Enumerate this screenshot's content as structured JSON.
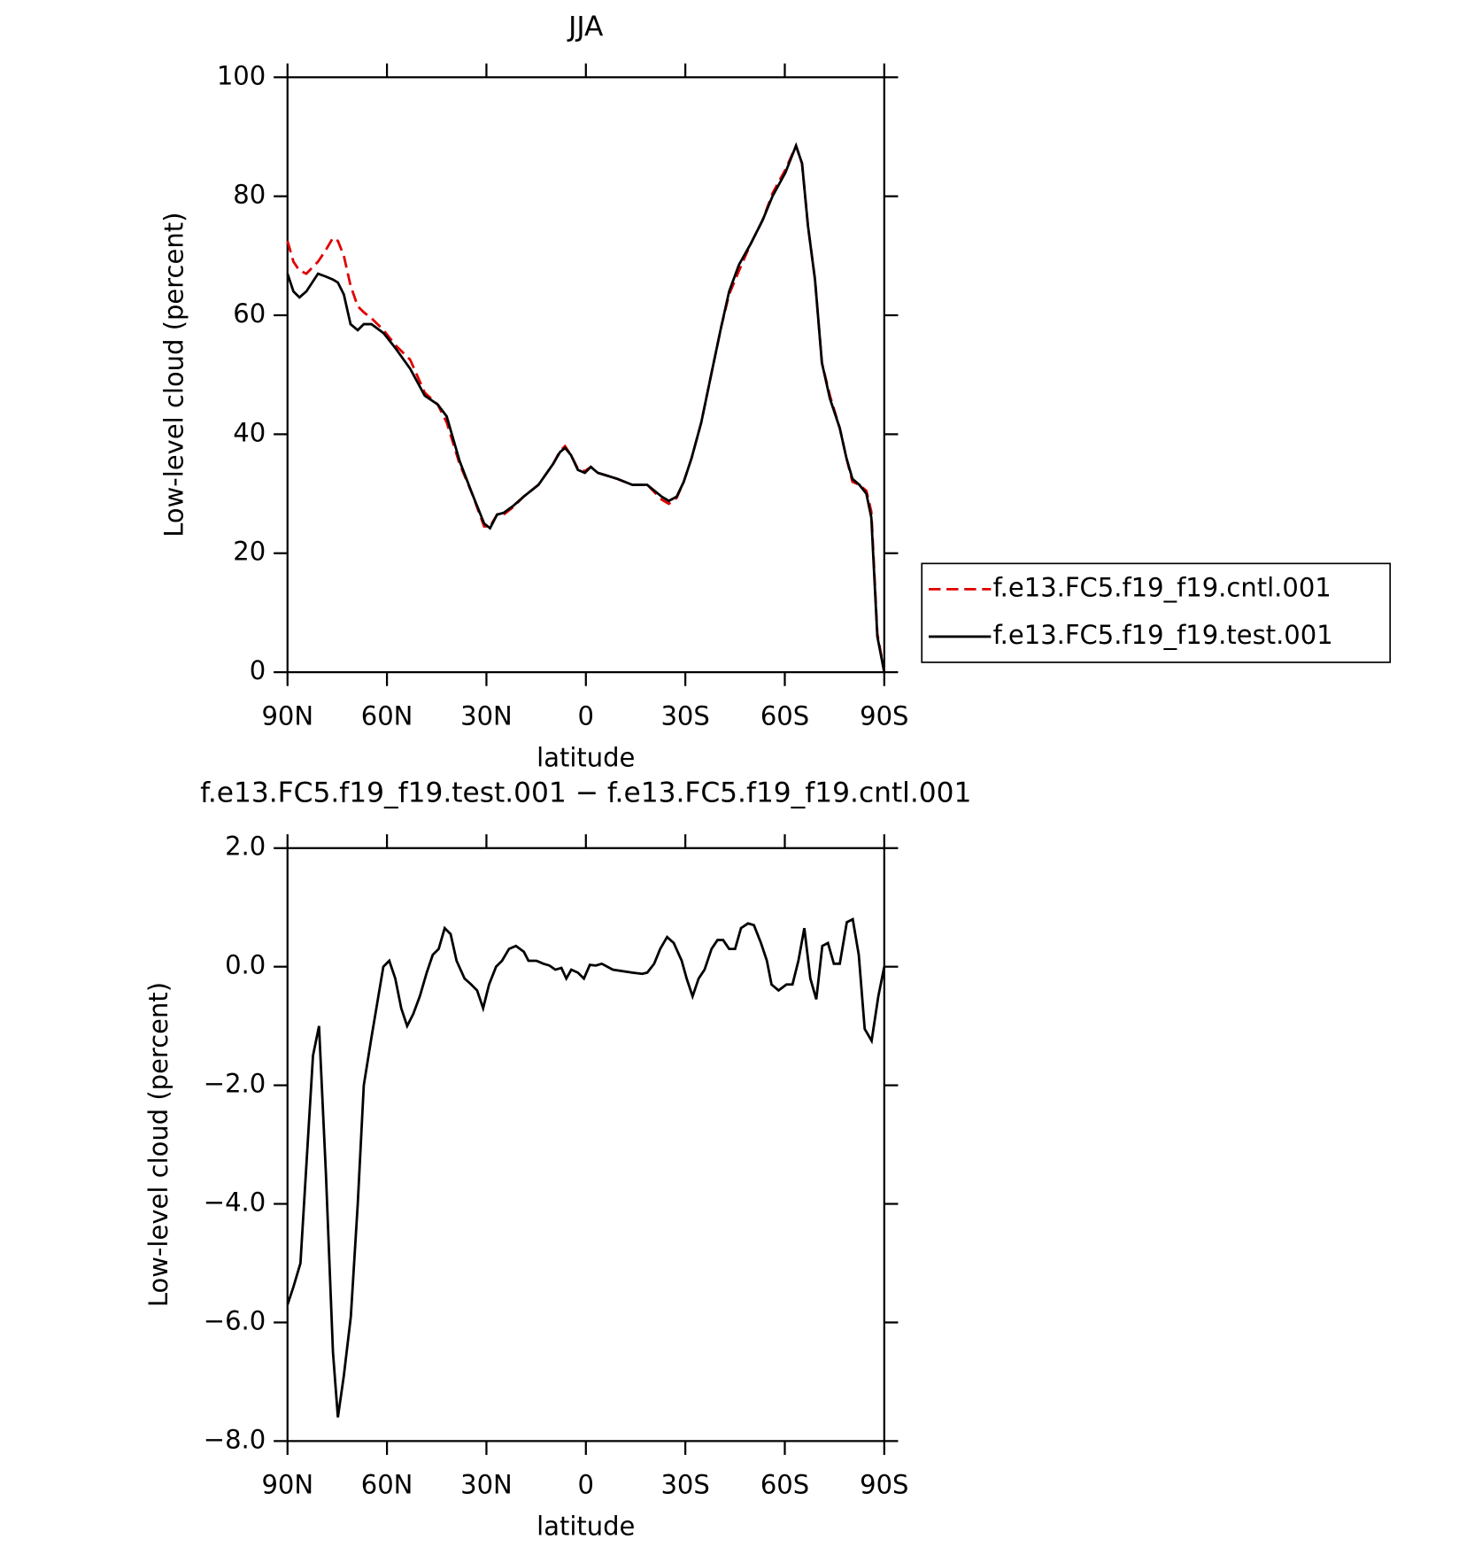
{
  "chart_data": [
    {
      "type": "line",
      "title": "JJA",
      "xlabel": "latitude",
      "ylabel": "Low-level cloud (percent)",
      "x": [
        90,
        88.2,
        86.4,
        84.3,
        80.8,
        78.4,
        76.3,
        74.8,
        73,
        71,
        68.8,
        67,
        64.7,
        61,
        57.5,
        53,
        48.6,
        44.7,
        42,
        38.1,
        34.3,
        30.7,
        28.9,
        26.8,
        24.8,
        21.8,
        18.8,
        14.3,
        9.9,
        7.8,
        6.3,
        4.5,
        2.4,
        0.3,
        -1.5,
        -3.6,
        -6.6,
        -9.5,
        -14,
        -18.5,
        -22.9,
        -25,
        -27.4,
        -29.5,
        -31.9,
        -34.8,
        -37.8,
        -40.8,
        -43.2,
        -46.2,
        -49.7,
        -53.3,
        -56.3,
        -60.2,
        -63.4,
        -65.2,
        -67,
        -69.1,
        -71.2,
        -73.6,
        -76.6,
        -78.6,
        -80.4,
        -82.5,
        -84.6,
        -86.1,
        -87.9,
        -90
      ],
      "series": [
        {
          "name": "f.e13.FC5.f19_f19.cntl.001",
          "color": "#e00000",
          "dashed": true,
          "values": [
            72.5,
            69,
            67.5,
            67,
            69,
            71,
            73,
            72.5,
            70,
            65,
            61.5,
            60.5,
            59.5,
            57.5,
            55,
            52.5,
            47,
            45,
            42,
            35,
            30,
            24.5,
            24.5,
            26.5,
            26.5,
            27.8,
            29.5,
            31.5,
            35,
            37.2,
            38,
            36.5,
            34.2,
            33.8,
            34.5,
            33.5,
            33,
            32.5,
            31.5,
            31.5,
            29,
            28.3,
            29.3,
            32,
            36,
            42,
            50,
            58,
            63.5,
            67.5,
            72,
            76,
            80.5,
            84.5,
            88.5,
            85.5,
            75,
            66,
            52,
            46.5,
            41,
            36,
            32,
            31.5,
            30.5,
            27,
            6.5,
            0
          ]
        },
        {
          "name": "f.e13.FC5.f19_f19.test.001",
          "color": "#000000",
          "dashed": false,
          "values": [
            67,
            64,
            63,
            64,
            67,
            66.5,
            66,
            65.5,
            63.5,
            58.5,
            57.5,
            58.5,
            58.5,
            57,
            54.5,
            51,
            46.5,
            45,
            43,
            35.5,
            30,
            25,
            24.2,
            26.5,
            26.8,
            28,
            29.5,
            31.5,
            35,
            37,
            37.7,
            36.5,
            34,
            33.5,
            34.5,
            33.5,
            33,
            32.5,
            31.5,
            31.5,
            29.5,
            28.8,
            29.5,
            32,
            36,
            42,
            50,
            58,
            64,
            68.5,
            72,
            76,
            80,
            84,
            88.5,
            85.5,
            75,
            66,
            52,
            46,
            41,
            36,
            32.5,
            31.5,
            30,
            26,
            6,
            0
          ]
        }
      ],
      "xlim": [
        90,
        -90
      ],
      "xticks": [
        {
          "value": 90,
          "label": "90N"
        },
        {
          "value": 60,
          "label": "60N"
        },
        {
          "value": 30,
          "label": "30N"
        },
        0,
        {
          "value": -30,
          "label": "30S"
        },
        {
          "value": -60,
          "label": "60S"
        },
        {
          "value": -90,
          "label": "90S"
        }
      ],
      "ylim": [
        0,
        100
      ],
      "yticks": [
        0,
        20,
        40,
        60,
        80,
        100
      ],
      "legend": "right"
    },
    {
      "type": "line",
      "title": "f.e13.FC5.f19_f19.test.001 − f.e13.FC5.f19_f19.cntl.001",
      "xlabel": "latitude",
      "ylabel": "Low-level cloud (percent)",
      "x": [
        90,
        88.2,
        86.1,
        82.3,
        80.5,
        78.4,
        76.3,
        74.8,
        73.0,
        70.9,
        68.8,
        67.0,
        64.7,
        61.1,
        59.3,
        57.5,
        55.7,
        53.9,
        52.1,
        50.1,
        48.0,
        46.2,
        44.4,
        42.6,
        40.8,
        39.0,
        36.6,
        34.6,
        32.8,
        31.0,
        29.2,
        27.1,
        25.3,
        23.2,
        21.1,
        18.7,
        17.3,
        14.9,
        12.8,
        11.0,
        9.2,
        7.4,
        5.9,
        4.4,
        2.4,
        0.6,
        -1.2,
        -3.0,
        -4.8,
        -8.1,
        -14.0,
        -17.0,
        -18.5,
        -20.6,
        -22.4,
        -24.5,
        -26.5,
        -28.9,
        -30.4,
        -32.2,
        -34.0,
        -35.8,
        -37.9,
        -39.7,
        -41.4,
        -43.2,
        -45.0,
        -46.8,
        -48.9,
        -50.7,
        -52.8,
        -54.6,
        -56.0,
        -58.1,
        -60.5,
        -62.3,
        -64.1,
        -65.9,
        -67.7,
        -69.5,
        -71.3,
        -73.0,
        -74.8,
        -76.6,
        -78.7,
        -80.5,
        -82.3,
        -84.1,
        -86.2,
        -88.2,
        -90
      ],
      "series": [
        {
          "color": "#000000",
          "dashed": false,
          "values": [
            -5.7,
            -5.4,
            -5,
            -1.5,
            -1.0,
            -3.5,
            -6.5,
            -7.6,
            -6.9,
            -5.9,
            -4,
            -2,
            -1.2,
            0,
            0.1,
            -0.2,
            -0.7,
            -1.0,
            -0.8,
            -0.5,
            -0.1,
            0.2,
            0.3,
            0.65,
            0.55,
            0.1,
            -0.2,
            -0.3,
            -0.4,
            -0.7,
            -0.3,
            0,
            0.1,
            0.3,
            0.35,
            0.25,
            0.1,
            0.1,
            0.05,
            0.02,
            -0.05,
            -0.02,
            -0.2,
            -0.05,
            -0.1,
            -0.2,
            0.03,
            0.02,
            0.05,
            -0.05,
            -0.1,
            -0.12,
            -0.1,
            0.05,
            0.3,
            0.5,
            0.4,
            0.1,
            -0.2,
            -0.5,
            -0.2,
            -0.05,
            0.3,
            0.45,
            0.45,
            0.3,
            0.3,
            0.65,
            0.73,
            0.7,
            0.4,
            0.1,
            -0.3,
            -0.4,
            -0.3,
            -0.3,
            0.1,
            0.65,
            -0.2,
            -0.55,
            0.35,
            0.4,
            0.05,
            0.05,
            0.75,
            0.8,
            0.2,
            -1.05,
            -1.25,
            -0.5,
            0
          ]
        }
      ],
      "xlim": [
        90,
        -90
      ],
      "xticks": [
        {
          "value": 90,
          "label": "90N"
        },
        {
          "value": 60,
          "label": "60N"
        },
        {
          "value": 30,
          "label": "30N"
        },
        0,
        {
          "value": -30,
          "label": "30S"
        },
        {
          "value": -60,
          "label": "60S"
        },
        {
          "value": -90,
          "label": "90S"
        }
      ],
      "ylim": [
        -8,
        2
      ],
      "yticks": [
        {
          "value": -8,
          "label": "−8.0"
        },
        {
          "value": -6,
          "label": "−6.0"
        },
        {
          "value": -4,
          "label": "−4.0"
        },
        {
          "value": -2,
          "label": "−2.0"
        },
        {
          "value": 0,
          "label": "0.0"
        },
        {
          "value": 2,
          "label": "2.0"
        }
      ]
    }
  ]
}
